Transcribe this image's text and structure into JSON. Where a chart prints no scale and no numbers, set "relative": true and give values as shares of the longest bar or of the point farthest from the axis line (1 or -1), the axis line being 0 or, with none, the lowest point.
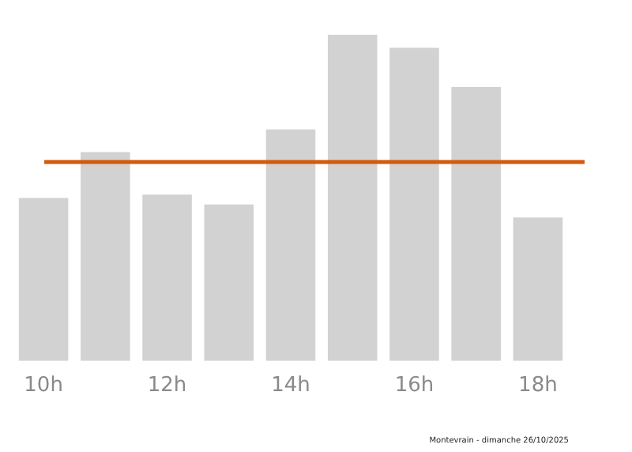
{
  "chart_data": {
    "type": "bar",
    "relative": true,
    "categories": [
      "10h",
      null,
      "12h",
      null,
      "14h",
      null,
      "16h",
      null,
      "18h"
    ],
    "values": [
      0.5,
      0.64,
      0.51,
      0.48,
      0.71,
      1,
      0.96,
      0.84,
      0.44
    ],
    "color": "#d3d2d2",
    "ref_lines": [
      {
        "axis": "y",
        "value": 0.61,
        "color": "#d35a0e"
      }
    ],
    "annotations": [
      "Montevrain - dimanche 26/10/2025"
    ],
    "grid": false,
    "legend": false
  }
}
